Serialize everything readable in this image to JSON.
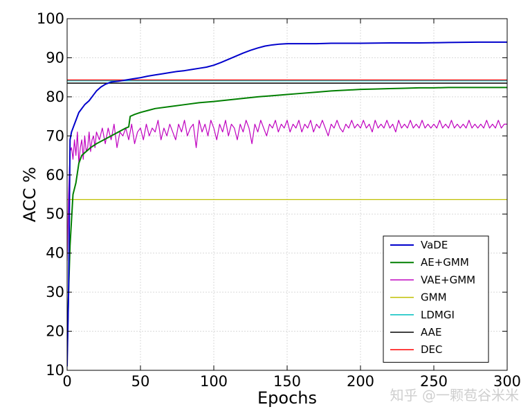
{
  "chart_data": {
    "type": "line",
    "xlabel": "Epochs",
    "ylabel": "ACC %",
    "xlim": [
      0,
      300
    ],
    "ylim": [
      10,
      100
    ],
    "xticks": [
      0,
      50,
      100,
      150,
      200,
      250,
      300
    ],
    "yticks": [
      10,
      20,
      30,
      40,
      50,
      60,
      70,
      80,
      90,
      100
    ],
    "grid": true,
    "legend_position": "lower-right",
    "series": [
      {
        "name": "VaDE",
        "color": "#0000cc",
        "width": 2,
        "points": [
          [
            0,
            11
          ],
          [
            1,
            30
          ],
          [
            2,
            69
          ],
          [
            3,
            71
          ],
          [
            5,
            73
          ],
          [
            8,
            76
          ],
          [
            12,
            78
          ],
          [
            15,
            79
          ],
          [
            18,
            80.5
          ],
          [
            20,
            81.5
          ],
          [
            23,
            82.5
          ],
          [
            26,
            83.2
          ],
          [
            30,
            83.8
          ],
          [
            35,
            84
          ],
          [
            40,
            84.3
          ],
          [
            45,
            84.6
          ],
          [
            50,
            84.9
          ],
          [
            55,
            85.3
          ],
          [
            60,
            85.6
          ],
          [
            65,
            85.9
          ],
          [
            70,
            86.2
          ],
          [
            75,
            86.5
          ],
          [
            80,
            86.7
          ],
          [
            85,
            87
          ],
          [
            90,
            87.3
          ],
          [
            95,
            87.6
          ],
          [
            100,
            88.1
          ],
          [
            105,
            88.8
          ],
          [
            110,
            89.6
          ],
          [
            115,
            90.4
          ],
          [
            120,
            91.2
          ],
          [
            125,
            91.9
          ],
          [
            130,
            92.5
          ],
          [
            135,
            93
          ],
          [
            140,
            93.3
          ],
          [
            145,
            93.5
          ],
          [
            150,
            93.6
          ],
          [
            160,
            93.6
          ],
          [
            170,
            93.6
          ],
          [
            180,
            93.7
          ],
          [
            190,
            93.7
          ],
          [
            200,
            93.7
          ],
          [
            220,
            93.8
          ],
          [
            240,
            93.8
          ],
          [
            260,
            93.9
          ],
          [
            280,
            94
          ],
          [
            300,
            94
          ]
        ]
      },
      {
        "name": "AE+GMM",
        "color": "#007f00",
        "width": 2,
        "points": [
          [
            0,
            14
          ],
          [
            1,
            30
          ],
          [
            2,
            42
          ],
          [
            4,
            55
          ],
          [
            6,
            58
          ],
          [
            8,
            63
          ],
          [
            10,
            65
          ],
          [
            13,
            66
          ],
          [
            16,
            67
          ],
          [
            20,
            68
          ],
          [
            25,
            69
          ],
          [
            30,
            70
          ],
          [
            35,
            71
          ],
          [
            40,
            72
          ],
          [
            42,
            72.3
          ],
          [
            43,
            75
          ],
          [
            46,
            75.5
          ],
          [
            50,
            76
          ],
          [
            55,
            76.5
          ],
          [
            60,
            77
          ],
          [
            70,
            77.5
          ],
          [
            80,
            78
          ],
          [
            90,
            78.5
          ],
          [
            100,
            78.8
          ],
          [
            110,
            79.2
          ],
          [
            120,
            79.6
          ],
          [
            130,
            80
          ],
          [
            140,
            80.3
          ],
          [
            150,
            80.6
          ],
          [
            160,
            80.9
          ],
          [
            170,
            81.2
          ],
          [
            180,
            81.5
          ],
          [
            190,
            81.7
          ],
          [
            200,
            81.9
          ],
          [
            210,
            82
          ],
          [
            220,
            82.1
          ],
          [
            230,
            82.2
          ],
          [
            240,
            82.3
          ],
          [
            250,
            82.3
          ],
          [
            260,
            82.4
          ],
          [
            270,
            82.4
          ],
          [
            280,
            82.4
          ],
          [
            290,
            82.4
          ],
          [
            300,
            82.4
          ]
        ]
      },
      {
        "name": "VAE+GMM",
        "color": "#bf00bf",
        "width": 1.2,
        "points": [
          [
            0,
            38
          ],
          [
            1,
            55
          ],
          [
            2,
            66
          ],
          [
            3,
            67
          ],
          [
            4,
            64
          ],
          [
            5,
            69
          ],
          [
            6,
            65
          ],
          [
            7,
            71
          ],
          [
            8,
            63
          ],
          [
            9,
            67
          ],
          [
            10,
            69
          ],
          [
            11,
            64
          ],
          [
            12,
            70
          ],
          [
            13,
            66
          ],
          [
            14,
            67
          ],
          [
            15,
            71
          ],
          [
            16,
            66
          ],
          [
            17,
            69
          ],
          [
            18,
            70
          ],
          [
            19,
            67
          ],
          [
            20,
            71
          ],
          [
            22,
            69
          ],
          [
            24,
            72
          ],
          [
            26,
            68
          ],
          [
            28,
            72
          ],
          [
            30,
            69
          ],
          [
            32,
            73
          ],
          [
            34,
            67
          ],
          [
            36,
            71
          ],
          [
            38,
            70
          ],
          [
            40,
            72
          ],
          [
            42,
            69
          ],
          [
            44,
            73
          ],
          [
            46,
            68
          ],
          [
            48,
            71
          ],
          [
            50,
            72
          ],
          [
            52,
            69
          ],
          [
            54,
            73
          ],
          [
            56,
            70
          ],
          [
            58,
            72
          ],
          [
            60,
            71
          ],
          [
            62,
            74
          ],
          [
            64,
            69
          ],
          [
            66,
            72
          ],
          [
            68,
            70
          ],
          [
            70,
            73
          ],
          [
            72,
            71
          ],
          [
            74,
            69
          ],
          [
            76,
            73
          ],
          [
            78,
            71
          ],
          [
            80,
            74
          ],
          [
            82,
            70
          ],
          [
            84,
            72
          ],
          [
            86,
            73
          ],
          [
            88,
            67
          ],
          [
            90,
            74
          ],
          [
            92,
            71
          ],
          [
            94,
            73
          ],
          [
            96,
            70
          ],
          [
            98,
            74
          ],
          [
            100,
            72
          ],
          [
            102,
            69
          ],
          [
            104,
            73
          ],
          [
            106,
            71
          ],
          [
            108,
            74
          ],
          [
            110,
            70
          ],
          [
            112,
            73
          ],
          [
            114,
            72
          ],
          [
            116,
            69
          ],
          [
            118,
            73
          ],
          [
            120,
            71
          ],
          [
            122,
            74
          ],
          [
            124,
            72
          ],
          [
            126,
            68
          ],
          [
            128,
            73
          ],
          [
            130,
            71
          ],
          [
            132,
            74
          ],
          [
            134,
            72
          ],
          [
            136,
            70
          ],
          [
            138,
            73
          ],
          [
            140,
            72
          ],
          [
            142,
            74
          ],
          [
            144,
            71
          ],
          [
            146,
            73
          ],
          [
            148,
            72
          ],
          [
            150,
            74
          ],
          [
            152,
            71
          ],
          [
            154,
            73
          ],
          [
            156,
            72
          ],
          [
            158,
            74
          ],
          [
            160,
            71
          ],
          [
            162,
            73
          ],
          [
            164,
            72
          ],
          [
            166,
            74
          ],
          [
            168,
            71
          ],
          [
            170,
            73
          ],
          [
            172,
            72
          ],
          [
            174,
            74
          ],
          [
            176,
            72
          ],
          [
            178,
            70
          ],
          [
            180,
            73
          ],
          [
            182,
            72
          ],
          [
            184,
            74
          ],
          [
            186,
            72
          ],
          [
            188,
            71
          ],
          [
            190,
            73
          ],
          [
            192,
            72
          ],
          [
            194,
            74
          ],
          [
            196,
            72
          ],
          [
            198,
            73
          ],
          [
            200,
            72
          ],
          [
            202,
            74
          ],
          [
            204,
            72
          ],
          [
            206,
            73
          ],
          [
            208,
            71
          ],
          [
            210,
            74
          ],
          [
            212,
            72
          ],
          [
            214,
            73
          ],
          [
            216,
            72
          ],
          [
            218,
            74
          ],
          [
            220,
            72
          ],
          [
            222,
            73
          ],
          [
            224,
            71
          ],
          [
            226,
            74
          ],
          [
            228,
            72
          ],
          [
            230,
            73
          ],
          [
            232,
            72
          ],
          [
            234,
            74
          ],
          [
            236,
            72
          ],
          [
            238,
            73
          ],
          [
            240,
            72
          ],
          [
            242,
            74
          ],
          [
            244,
            72
          ],
          [
            246,
            73
          ],
          [
            248,
            72
          ],
          [
            250,
            73
          ],
          [
            252,
            72
          ],
          [
            254,
            74
          ],
          [
            256,
            72
          ],
          [
            258,
            73
          ],
          [
            260,
            72
          ],
          [
            262,
            74
          ],
          [
            264,
            72
          ],
          [
            266,
            73
          ],
          [
            268,
            72
          ],
          [
            270,
            73
          ],
          [
            272,
            72
          ],
          [
            274,
            74
          ],
          [
            276,
            72
          ],
          [
            278,
            73
          ],
          [
            280,
            72
          ],
          [
            282,
            73
          ],
          [
            284,
            72
          ],
          [
            286,
            74
          ],
          [
            288,
            72
          ],
          [
            290,
            73
          ],
          [
            292,
            72
          ],
          [
            294,
            74
          ],
          [
            296,
            72
          ],
          [
            298,
            73
          ],
          [
            300,
            73
          ]
        ]
      },
      {
        "name": "GMM",
        "color": "#bfbf00",
        "width": 1.2,
        "points": [
          [
            0,
            53.7
          ],
          [
            300,
            53.7
          ]
        ]
      },
      {
        "name": "LDMGI",
        "color": "#00bfbf",
        "width": 1.2,
        "points": [
          [
            0,
            84.1
          ],
          [
            300,
            84.1
          ]
        ]
      },
      {
        "name": "AAE",
        "color": "#000000",
        "width": 1.5,
        "points": [
          [
            0,
            83.5
          ],
          [
            300,
            83.5
          ]
        ]
      },
      {
        "name": "DEC",
        "color": "#ff0000",
        "width": 1.5,
        "points": [
          [
            0,
            84.3
          ],
          [
            300,
            84.3
          ]
        ]
      }
    ]
  },
  "watermark": "知乎 @一颗苞谷米米"
}
